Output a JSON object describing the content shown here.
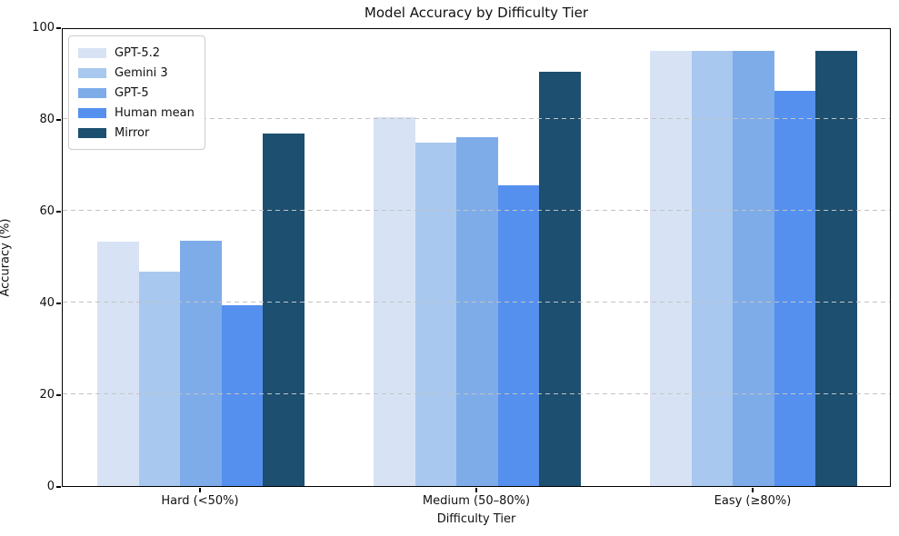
{
  "chart_data": {
    "type": "bar",
    "title": "Model Accuracy by Difficulty Tier",
    "xlabel": "Difficulty Tier",
    "ylabel": "Accuracy (%)",
    "categories": [
      "Hard (<50%)",
      "Medium (50–80%)",
      "Easy (≥80%)"
    ],
    "series": [
      {
        "name": "GPT-5.2",
        "color": "#d7e3f5",
        "values": [
          53.3,
          80.4,
          94.9
        ]
      },
      {
        "name": "Gemini 3",
        "color": "#a9c8ef",
        "values": [
          46.7,
          74.8,
          94.9
        ]
      },
      {
        "name": "GPT-5",
        "color": "#7eace9",
        "values": [
          53.4,
          76.1,
          94.9
        ]
      },
      {
        "name": "Human mean",
        "color": "#5590ee",
        "values": [
          39.4,
          65.5,
          86.1
        ]
      },
      {
        "name": "Mirror",
        "color": "#1c4f70",
        "values": [
          76.8,
          90.3,
          94.9
        ]
      }
    ],
    "ylim": [
      0,
      100
    ],
    "yticks": [
      0,
      20,
      40,
      60,
      80,
      100
    ],
    "grid": "horizontal-dashed",
    "grid_color": "#c3c3c3",
    "legend_position": "upper-left",
    "axis_color": "#000000"
  }
}
